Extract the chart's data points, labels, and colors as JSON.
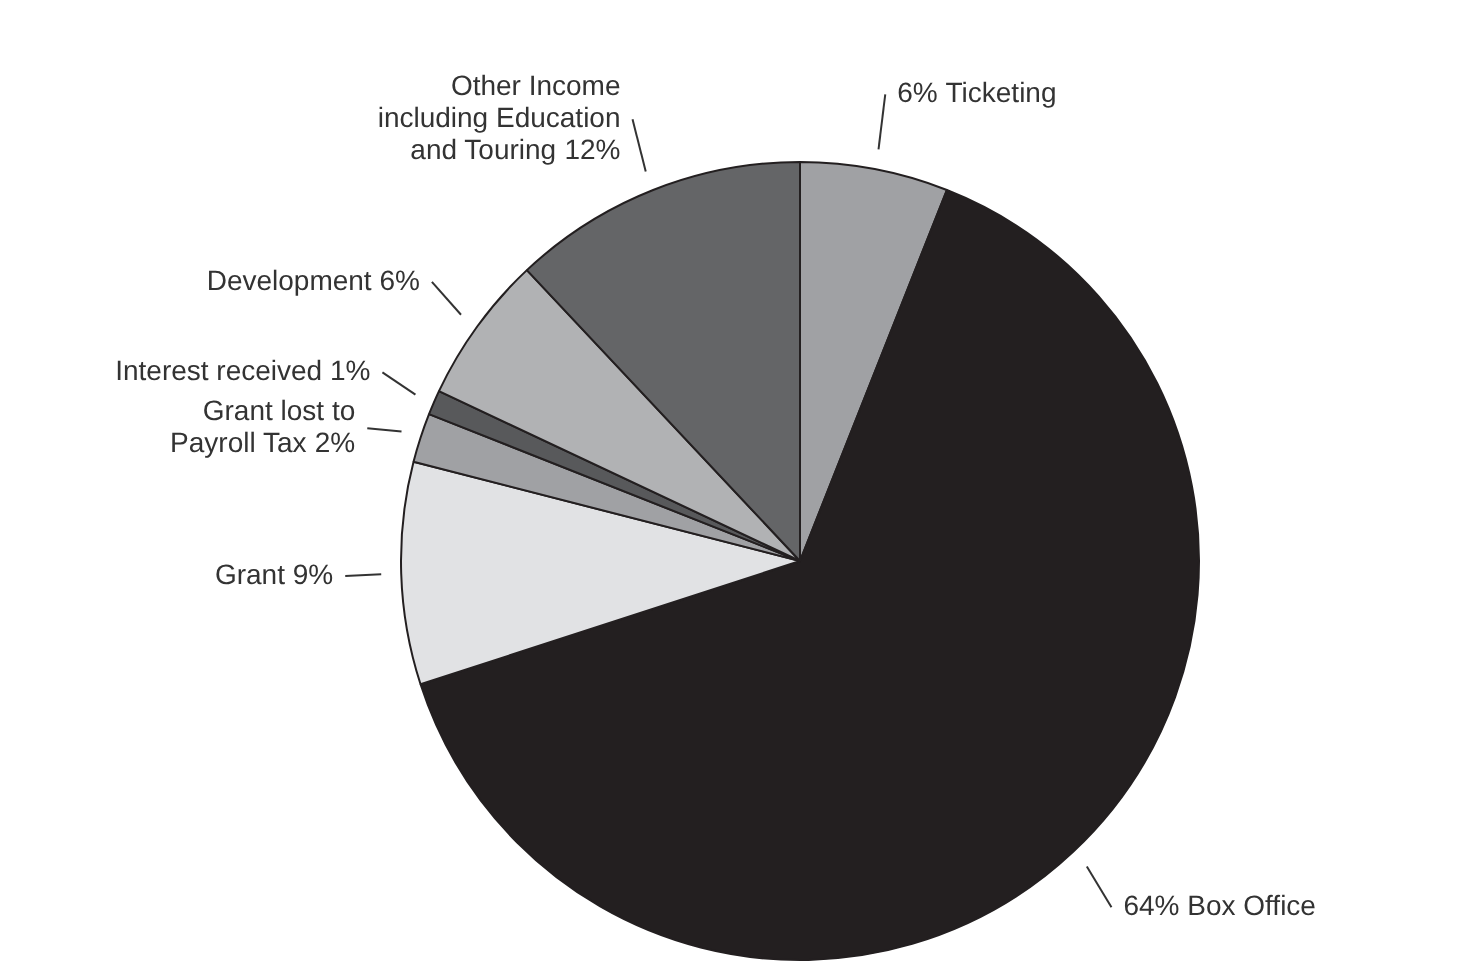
{
  "chart_data": {
    "type": "pie",
    "categories": [
      "Ticketing",
      "Box Office",
      "Grant",
      "Grant lost to Payroll Tax",
      "Interest received",
      "Development",
      "Other Income including Education and Touring"
    ],
    "values": [
      6,
      64,
      9,
      2,
      1,
      6,
      12
    ],
    "colors": [
      "#a0a1a4",
      "#231f20",
      "#e1e2e4",
      "#a0a1a4",
      "#58595b",
      "#b1b2b4",
      "#646567"
    ],
    "value_labels": [
      "6%",
      "64%",
      "9%",
      "2%",
      "1%",
      "6%",
      "12%"
    ],
    "legend": false
  }
}
